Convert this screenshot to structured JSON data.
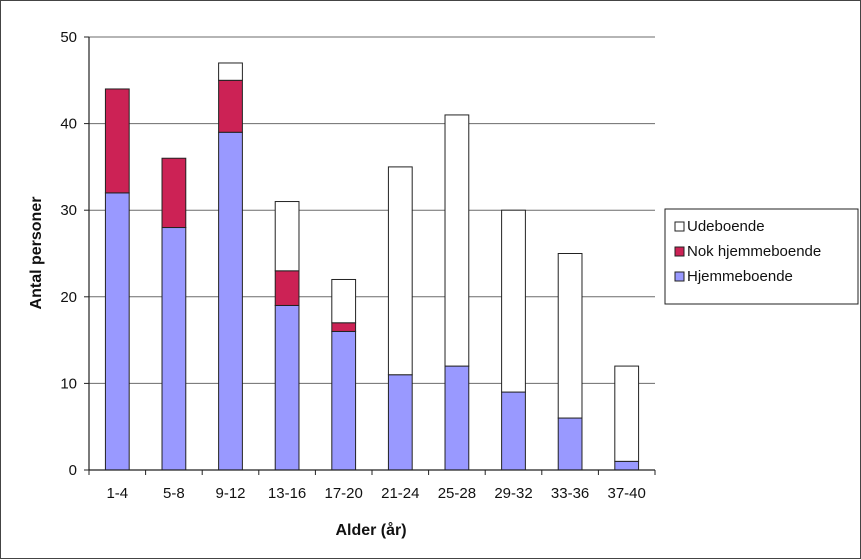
{
  "chart_data": {
    "type": "bar",
    "stacked": true,
    "title": "",
    "xlabel": "Alder (år)",
    "ylabel": "Antal personer",
    "ylim": [
      0,
      50
    ],
    "yticks": [
      0,
      10,
      20,
      30,
      40,
      50
    ],
    "grid": true,
    "legend_position": "right",
    "categories": [
      "1-4",
      "5-8",
      "9-12",
      "13-16",
      "17-20",
      "21-24",
      "25-28",
      "29-32",
      "33-36",
      "37-40"
    ],
    "series": [
      {
        "name": "Hjemmeboende",
        "color": "#9999ff",
        "values": [
          32,
          28,
          39,
          19,
          16,
          11,
          12,
          9,
          6,
          1
        ]
      },
      {
        "name": "Nok hjemmeboende",
        "color": "#cc2255",
        "values": [
          12,
          8,
          6,
          4,
          1,
          0,
          0,
          0,
          0,
          0
        ]
      },
      {
        "name": "Udeboende",
        "color": "#ffffff",
        "values": [
          0,
          0,
          2,
          8,
          5,
          24,
          29,
          21,
          19,
          11
        ]
      }
    ],
    "legend_order": [
      "Udeboende",
      "Nok hjemmeboende",
      "Hjemmeboende"
    ]
  }
}
